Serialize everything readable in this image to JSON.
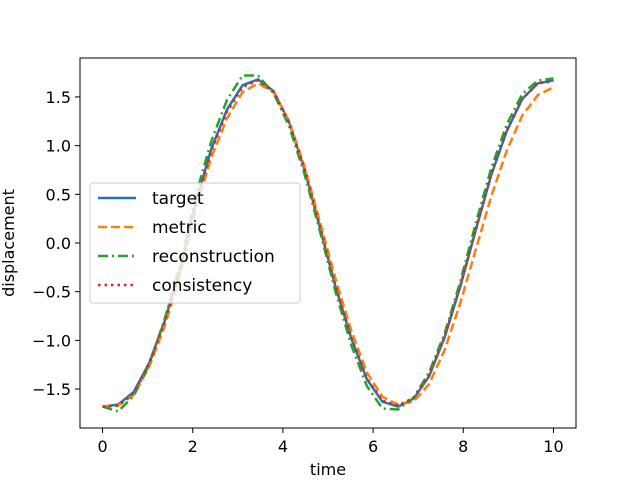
{
  "chart_data": {
    "type": "line",
    "title": "",
    "xlabel": "time",
    "ylabel": "displacement",
    "xlim": [
      -0.5,
      10.5
    ],
    "ylim": [
      -1.9,
      1.9
    ],
    "grid": false,
    "legend_position": "center-left",
    "x_ticks": [
      0,
      2,
      4,
      6,
      8,
      10
    ],
    "x_tick_labels": [
      "0",
      "2",
      "4",
      "6",
      "8",
      "10"
    ],
    "y_ticks": [
      -1.5,
      -1.0,
      -0.5,
      0.0,
      0.5,
      1.0,
      1.5
    ],
    "y_tick_labels": [
      "−1.5",
      "−1.0",
      "−0.5",
      "0.0",
      "0.5",
      "1.0",
      "1.5"
    ],
    "x": [
      0.0,
      0.345,
      0.69,
      1.034,
      1.379,
      1.724,
      2.069,
      2.414,
      2.759,
      3.103,
      3.448,
      3.793,
      4.138,
      4.483,
      4.828,
      5.172,
      5.517,
      5.862,
      6.207,
      6.552,
      6.897,
      7.241,
      7.586,
      7.931,
      8.276,
      8.621,
      8.966,
      9.31,
      9.655,
      10.0
    ],
    "series": [
      {
        "name": "target",
        "color": "#1f77b4",
        "style": "solid",
        "values": [
          -1.68,
          -1.66,
          -1.53,
          -1.23,
          -0.8,
          -0.27,
          0.42,
          0.97,
          1.37,
          1.62,
          1.68,
          1.56,
          1.24,
          0.75,
          0.15,
          -0.46,
          -0.98,
          -1.4,
          -1.63,
          -1.68,
          -1.6,
          -1.37,
          -0.97,
          -0.45,
          0.13,
          0.7,
          1.15,
          1.48,
          1.64,
          1.67
        ]
      },
      {
        "name": "metric",
        "color": "#ff7f0e",
        "style": "dashed",
        "values": [
          -1.68,
          -1.67,
          -1.56,
          -1.27,
          -0.85,
          -0.33,
          0.35,
          0.88,
          1.28,
          1.55,
          1.64,
          1.55,
          1.25,
          0.78,
          0.21,
          -0.38,
          -0.9,
          -1.33,
          -1.58,
          -1.66,
          -1.63,
          -1.45,
          -1.1,
          -0.62,
          -0.07,
          0.48,
          0.95,
          1.31,
          1.52,
          1.6
        ]
      },
      {
        "name": "reconstruction",
        "color": "#2ca02c",
        "style": "dashdot",
        "values": [
          -1.68,
          -1.73,
          -1.57,
          -1.25,
          -0.78,
          -0.22,
          0.49,
          1.05,
          1.47,
          1.72,
          1.72,
          1.54,
          1.2,
          0.7,
          0.11,
          -0.51,
          -1.05,
          -1.47,
          -1.7,
          -1.71,
          -1.59,
          -1.33,
          -0.93,
          -0.4,
          0.2,
          0.77,
          1.22,
          1.53,
          1.67,
          1.69
        ]
      },
      {
        "name": "consistency",
        "color": "#d62728",
        "style": "dotted",
        "values": [
          -1.68,
          -1.67,
          -1.54,
          -1.24,
          -0.81,
          -0.28,
          0.4,
          0.95,
          1.35,
          1.6,
          1.67,
          1.55,
          1.24,
          0.76,
          0.16,
          -0.45,
          -0.97,
          -1.39,
          -1.62,
          -1.67,
          -1.59,
          -1.36,
          -0.96,
          -0.44,
          0.14,
          0.71,
          1.16,
          1.48,
          1.64,
          1.66
        ]
      }
    ]
  }
}
